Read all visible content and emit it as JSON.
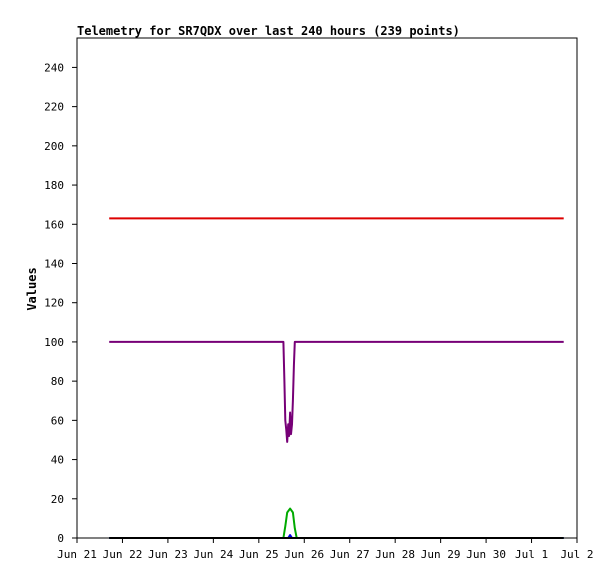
{
  "chart_data": {
    "type": "line",
    "title": "Telemetry for SR7QDX over last 240 hours (239 points)",
    "xlabel": "",
    "ylabel": "Values",
    "ylim": [
      0,
      255
    ],
    "grid": false,
    "legend": "none",
    "x_ticks": [
      "Jun 21",
      "Jun 22",
      "Jun 23",
      "Jun 24",
      "Jun 25",
      "Jun 26",
      "Jun 27",
      "Jun 28",
      "Jun 29",
      "Jun 30",
      "Jul 1",
      "Jul 2"
    ],
    "x_domain": [
      "2023-06-21",
      "2023-07-02"
    ],
    "y_ticks": [
      0,
      20,
      40,
      60,
      80,
      100,
      120,
      140,
      160,
      180,
      200,
      220,
      240
    ],
    "series": [
      {
        "color": "#dd0000",
        "points": [
          [
            "2023-06-21T17:00",
            163
          ],
          [
            "2023-07-01T17:00",
            163
          ]
        ]
      },
      {
        "color": "#770077",
        "points": [
          [
            "2023-06-21T17:00",
            100
          ],
          [
            "2023-06-25T13:00",
            100
          ],
          [
            "2023-06-25T13:30",
            80
          ],
          [
            "2023-06-25T14:00",
            60
          ],
          [
            "2023-06-25T14:30",
            55
          ],
          [
            "2023-06-25T15:00",
            49
          ],
          [
            "2023-06-25T15:30",
            58
          ],
          [
            "2023-06-25T16:00",
            52
          ],
          [
            "2023-06-25T16:30",
            64
          ],
          [
            "2023-06-25T17:00",
            53
          ],
          [
            "2023-06-25T17:30",
            58
          ],
          [
            "2023-06-25T18:00",
            70
          ],
          [
            "2023-06-25T18:30",
            88
          ],
          [
            "2023-06-25T19:00",
            100
          ],
          [
            "2023-07-01T17:00",
            100
          ]
        ]
      },
      {
        "color": "#00aa00",
        "points": [
          [
            "2023-06-21T17:00",
            0
          ],
          [
            "2023-06-25T13:00",
            0
          ],
          [
            "2023-06-25T14:00",
            6
          ],
          [
            "2023-06-25T15:00",
            13
          ],
          [
            "2023-06-25T16:30",
            15
          ],
          [
            "2023-06-25T18:00",
            13
          ],
          [
            "2023-06-25T19:00",
            5
          ],
          [
            "2023-06-25T20:00",
            0
          ],
          [
            "2023-07-01T17:00",
            0
          ]
        ]
      },
      {
        "color": "#0000dd",
        "points": [
          [
            "2023-06-21T17:00",
            0
          ],
          [
            "2023-06-25T15:30",
            0
          ],
          [
            "2023-06-25T16:30",
            1.5
          ],
          [
            "2023-06-25T17:30",
            0
          ],
          [
            "2023-07-01T17:00",
            0
          ]
        ]
      },
      {
        "color": "#000000",
        "points": [
          [
            "2023-06-21T17:00",
            0
          ],
          [
            "2023-07-01T17:00",
            0
          ]
        ]
      }
    ]
  }
}
